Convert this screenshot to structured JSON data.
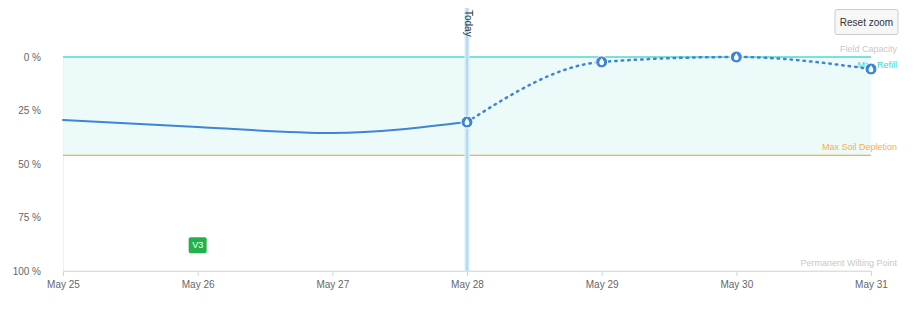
{
  "chart_data": {
    "type": "line",
    "x": [
      "May 25",
      "May 26",
      "May 27",
      "May 28",
      "May 29",
      "May 30",
      "May 31"
    ],
    "series": [
      {
        "color": "#3d85d8",
        "line_style": "solid",
        "values": [
          29.4,
          32.7,
          35.5,
          30.4,
          null,
          null,
          null
        ]
      },
      {
        "color": "#3d85d8",
        "line_style": "dotted",
        "marker": "drop",
        "values": [
          null,
          null,
          null,
          30.4,
          2.3,
          0,
          5.6
        ]
      }
    ],
    "xlim": [
      "May 25",
      "May 31"
    ],
    "xticks": [
      "May 25",
      "May 26",
      "May 27",
      "May 28",
      "May 29",
      "May 30",
      "May 31"
    ],
    "ylim": [
      100,
      0
    ],
    "yticks": [
      {
        "value": 0,
        "label": "0 %"
      },
      {
        "value": 25,
        "label": "25 %"
      },
      {
        "value": 50,
        "label": "50 %"
      },
      {
        "value": 75,
        "label": "75 %"
      },
      {
        "value": 100,
        "label": "100 %"
      }
    ],
    "grid": false,
    "reference_lines": [
      {
        "value": 0,
        "label": "Field Capacity",
        "color": "#7fe0d6"
      },
      {
        "value": 0,
        "label": "Max Refill",
        "color": "#3dd6c6"
      },
      {
        "value": 46,
        "label": "Max Soil Depletion",
        "color": "#f5b342"
      },
      {
        "value": 100,
        "label": "Permanent Wilting Point",
        "color": "#e6e6e6"
      }
    ],
    "today": {
      "text": "Today",
      "x": "May 28"
    },
    "stage": {
      "text": "V3",
      "x": "May 26",
      "y": 88,
      "color": "#22b24c"
    },
    "button": "Reset zoom"
  }
}
